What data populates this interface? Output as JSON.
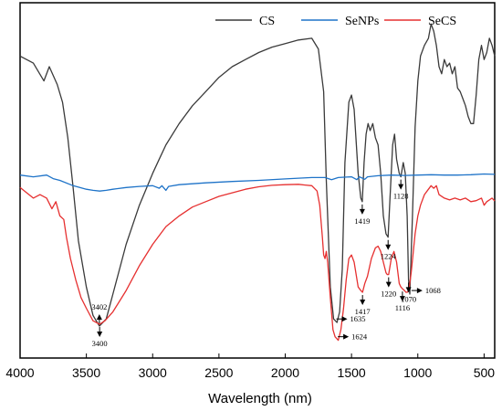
{
  "chart_data": {
    "type": "line",
    "xlabel": "Wavelength (nm)",
    "x_reversed": true,
    "xlim": [
      4000,
      420
    ],
    "x_ticks": [
      "4000",
      "3500",
      "3000",
      "2500",
      "2000",
      "1500",
      "1000",
      "500"
    ],
    "grid": false,
    "legend_position": "top-right",
    "series": [
      {
        "name": "CS",
        "color": "#3a3a3a",
        "points": [
          [
            4000,
            85
          ],
          [
            3900,
            83
          ],
          [
            3820,
            78
          ],
          [
            3780,
            82
          ],
          [
            3720,
            77
          ],
          [
            3680,
            72
          ],
          [
            3640,
            62
          ],
          [
            3600,
            48
          ],
          [
            3560,
            33
          ],
          [
            3500,
            20
          ],
          [
            3450,
            12
          ],
          [
            3402,
            9
          ],
          [
            3350,
            11
          ],
          [
            3300,
            18
          ],
          [
            3200,
            32
          ],
          [
            3100,
            43
          ],
          [
            3000,
            52
          ],
          [
            2950,
            56
          ],
          [
            2900,
            60
          ],
          [
            2800,
            66
          ],
          [
            2700,
            71
          ],
          [
            2600,
            75
          ],
          [
            2500,
            79
          ],
          [
            2400,
            82
          ],
          [
            2300,
            84
          ],
          [
            2200,
            86
          ],
          [
            2100,
            87.5
          ],
          [
            2000,
            88.5
          ],
          [
            1900,
            89.5
          ],
          [
            1800,
            90
          ],
          [
            1750,
            87
          ],
          [
            1710,
            75
          ],
          [
            1690,
            50
          ],
          [
            1660,
            20
          ],
          [
            1635,
            11
          ],
          [
            1610,
            10
          ],
          [
            1590,
            13
          ],
          [
            1570,
            25
          ],
          [
            1550,
            55
          ],
          [
            1520,
            72
          ],
          [
            1500,
            74
          ],
          [
            1480,
            70
          ],
          [
            1450,
            52
          ],
          [
            1430,
            45
          ],
          [
            1419,
            44
          ],
          [
            1405,
            55
          ],
          [
            1390,
            63
          ],
          [
            1375,
            66
          ],
          [
            1360,
            64
          ],
          [
            1340,
            66
          ],
          [
            1320,
            62
          ],
          [
            1300,
            60
          ],
          [
            1280,
            52
          ],
          [
            1260,
            40
          ],
          [
            1240,
            35
          ],
          [
            1224,
            34
          ],
          [
            1210,
            45
          ],
          [
            1190,
            60
          ],
          [
            1175,
            63
          ],
          [
            1160,
            56
          ],
          [
            1140,
            52
          ],
          [
            1128,
            51
          ],
          [
            1110,
            55
          ],
          [
            1095,
            52
          ],
          [
            1080,
            40
          ],
          [
            1070,
            22
          ],
          [
            1060,
            18
          ],
          [
            1040,
            40
          ],
          [
            1020,
            65
          ],
          [
            1000,
            78
          ],
          [
            980,
            85
          ],
          [
            950,
            88
          ],
          [
            920,
            90
          ],
          [
            900,
            94
          ],
          [
            880,
            92
          ],
          [
            860,
            88
          ],
          [
            840,
            82
          ],
          [
            820,
            80
          ],
          [
            800,
            84
          ],
          [
            780,
            82
          ],
          [
            760,
            83
          ],
          [
            740,
            80
          ],
          [
            720,
            82
          ],
          [
            700,
            76
          ],
          [
            680,
            75
          ],
          [
            660,
            73
          ],
          [
            640,
            71
          ],
          [
            620,
            68
          ],
          [
            600,
            66
          ],
          [
            580,
            66
          ],
          [
            560,
            74
          ],
          [
            540,
            84
          ],
          [
            520,
            88
          ],
          [
            500,
            84
          ],
          [
            480,
            86
          ],
          [
            460,
            90
          ],
          [
            440,
            88
          ],
          [
            420,
            85
          ]
        ]
      },
      {
        "name": "SeNPs",
        "color": "#1e73c8",
        "points": [
          [
            4000,
            51.5
          ],
          [
            3900,
            51
          ],
          [
            3800,
            51.5
          ],
          [
            3750,
            50.5
          ],
          [
            3700,
            50
          ],
          [
            3600,
            48.5
          ],
          [
            3500,
            47.5
          ],
          [
            3450,
            47.2
          ],
          [
            3400,
            47
          ],
          [
            3350,
            47.2
          ],
          [
            3300,
            47.5
          ],
          [
            3200,
            48
          ],
          [
            3100,
            48.3
          ],
          [
            3000,
            48.5
          ],
          [
            2950,
            47.8
          ],
          [
            2930,
            48.5
          ],
          [
            2900,
            47.2
          ],
          [
            2880,
            48.3
          ],
          [
            2800,
            48.8
          ],
          [
            2600,
            49.3
          ],
          [
            2400,
            49.7
          ],
          [
            2200,
            50
          ],
          [
            2000,
            50.4
          ],
          [
            1800,
            50.8
          ],
          [
            1700,
            50.8
          ],
          [
            1650,
            50.2
          ],
          [
            1600,
            50.8
          ],
          [
            1500,
            51
          ],
          [
            1460,
            50.2
          ],
          [
            1440,
            51
          ],
          [
            1400,
            50.3
          ],
          [
            1380,
            51
          ],
          [
            1300,
            51.3
          ],
          [
            1200,
            51.5
          ],
          [
            1100,
            51.4
          ],
          [
            1000,
            51.5
          ],
          [
            900,
            51.6
          ],
          [
            800,
            51.5
          ],
          [
            700,
            51.5
          ],
          [
            600,
            51.6
          ],
          [
            500,
            51.8
          ],
          [
            420,
            51.7
          ]
        ]
      },
      {
        "name": "SeCS",
        "color": "#e63030",
        "points": [
          [
            4000,
            48
          ],
          [
            3950,
            46.5
          ],
          [
            3900,
            45
          ],
          [
            3850,
            46
          ],
          [
            3800,
            45
          ],
          [
            3760,
            42
          ],
          [
            3730,
            44
          ],
          [
            3700,
            40
          ],
          [
            3670,
            39
          ],
          [
            3650,
            34
          ],
          [
            3620,
            28
          ],
          [
            3580,
            22
          ],
          [
            3540,
            17
          ],
          [
            3500,
            14
          ],
          [
            3450,
            10.5
          ],
          [
            3400,
            9.5
          ],
          [
            3360,
            10.5
          ],
          [
            3300,
            13
          ],
          [
            3200,
            19
          ],
          [
            3100,
            26
          ],
          [
            3000,
            32
          ],
          [
            2900,
            37
          ],
          [
            2800,
            40
          ],
          [
            2700,
            42.5
          ],
          [
            2600,
            44
          ],
          [
            2500,
            45.5
          ],
          [
            2400,
            46.5
          ],
          [
            2300,
            47.5
          ],
          [
            2200,
            48.2
          ],
          [
            2100,
            48.6
          ],
          [
            2000,
            48.8
          ],
          [
            1900,
            48.9
          ],
          [
            1850,
            48.7
          ],
          [
            1800,
            48.5
          ],
          [
            1760,
            47
          ],
          [
            1740,
            43
          ],
          [
            1720,
            34
          ],
          [
            1710,
            29
          ],
          [
            1700,
            28
          ],
          [
            1690,
            30
          ],
          [
            1680,
            27
          ],
          [
            1660,
            17
          ],
          [
            1640,
            8
          ],
          [
            1624,
            6
          ],
          [
            1600,
            5
          ],
          [
            1580,
            8
          ],
          [
            1560,
            14
          ],
          [
            1540,
            22
          ],
          [
            1520,
            28
          ],
          [
            1500,
            29
          ],
          [
            1480,
            27
          ],
          [
            1450,
            20
          ],
          [
            1430,
            19
          ],
          [
            1417,
            18.5
          ],
          [
            1400,
            21
          ],
          [
            1380,
            23
          ],
          [
            1350,
            28
          ],
          [
            1320,
            31
          ],
          [
            1300,
            31.5
          ],
          [
            1280,
            30
          ],
          [
            1260,
            27
          ],
          [
            1240,
            24
          ],
          [
            1230,
            23.5
          ],
          [
            1220,
            23.5
          ],
          [
            1200,
            28
          ],
          [
            1180,
            30
          ],
          [
            1160,
            27
          ],
          [
            1140,
            21
          ],
          [
            1128,
            20
          ],
          [
            1116,
            19.5
          ],
          [
            1100,
            19
          ],
          [
            1090,
            18.5
          ],
          [
            1080,
            18.5
          ],
          [
            1068,
            19
          ],
          [
            1050,
            24
          ],
          [
            1020,
            35
          ],
          [
            1000,
            40
          ],
          [
            980,
            43
          ],
          [
            950,
            46
          ],
          [
            920,
            47.5
          ],
          [
            900,
            48.5
          ],
          [
            880,
            47.8
          ],
          [
            860,
            48.5
          ],
          [
            840,
            46
          ],
          [
            800,
            45
          ],
          [
            760,
            44.5
          ],
          [
            720,
            45
          ],
          [
            680,
            44.5
          ],
          [
            640,
            45
          ],
          [
            600,
            44
          ],
          [
            560,
            44.3
          ],
          [
            520,
            45
          ],
          [
            500,
            43
          ],
          [
            480,
            44
          ],
          [
            460,
            44.5
          ],
          [
            440,
            45
          ],
          [
            420,
            44.2
          ]
        ]
      }
    ],
    "annotations": [
      {
        "series": "CS",
        "label": "3402",
        "x": 3402,
        "value": 9,
        "dir": "up"
      },
      {
        "series": "CS",
        "label": "1635",
        "x": 1635,
        "value": 11,
        "dir": "right"
      },
      {
        "series": "CS",
        "label": "1419",
        "x": 1419,
        "value": 44,
        "dir": "down"
      },
      {
        "series": "CS",
        "label": "1224",
        "x": 1224,
        "value": 34,
        "dir": "down"
      },
      {
        "series": "CS",
        "label": "1128",
        "x": 1128,
        "value": 51,
        "dir": "down"
      },
      {
        "series": "CS",
        "label": "1070",
        "x": 1070,
        "value": 22,
        "dir": "down"
      },
      {
        "series": "SeCS",
        "label": "3400",
        "x": 3400,
        "value": 9.5,
        "dir": "down"
      },
      {
        "series": "SeCS",
        "label": "1624",
        "x": 1624,
        "value": 6,
        "dir": "right"
      },
      {
        "series": "SeCS",
        "label": "1417",
        "x": 1417,
        "value": 18.5,
        "dir": "down"
      },
      {
        "series": "SeCS",
        "label": "1220",
        "x": 1220,
        "value": 23.5,
        "dir": "down"
      },
      {
        "series": "SeCS",
        "label": "1116",
        "x": 1116,
        "value": 19.5,
        "dir": "down"
      },
      {
        "series": "SeCS",
        "label": "1068",
        "x": 1068,
        "value": 19,
        "dir": "right"
      }
    ]
  }
}
